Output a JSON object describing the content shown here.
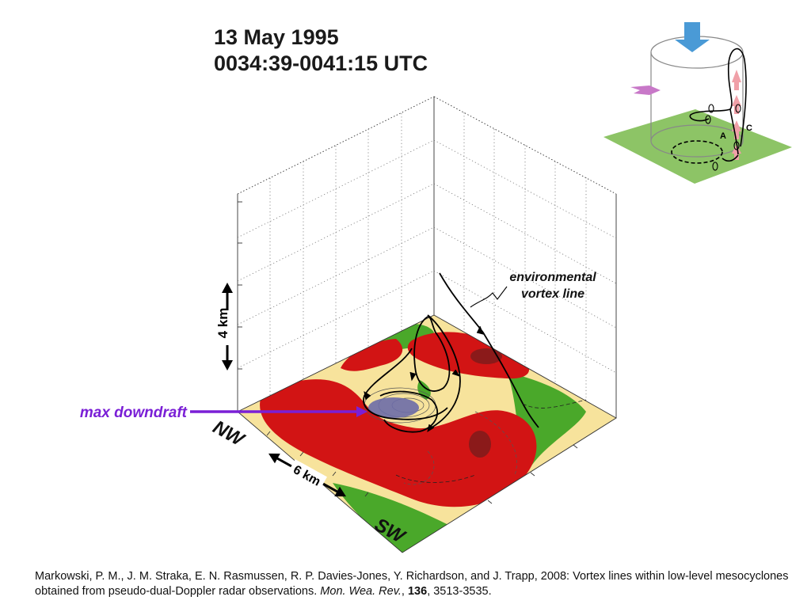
{
  "title": {
    "date": "13 May 1995",
    "time_range": "0034:39-0041:15 UTC"
  },
  "annotations": {
    "environmental_line1": "environmental",
    "environmental_line2": "vortex line",
    "max_downdraft": "max downdraft",
    "vertical_scale": "4 km",
    "horizontal_scale": "6 km",
    "nw": "NW",
    "sw": "SW"
  },
  "inset": {
    "label_a": "A",
    "label_c": "C"
  },
  "citation": {
    "text": "Markowski, P. M., J. M. Straka, E. N. Rasmussen, R. P. Davies-Jones, Y. Richardson, and J. Trapp, 2008: Vortex lines within low-level mesocyclones obtained from pseudo-dual-Doppler radar observations. ",
    "journal": "Mon. Wea. Rev.",
    "volume": "136",
    "pages": ", 3513-3535."
  },
  "colors": {
    "red": "#d21414",
    "dark_red": "#8b1a1a",
    "yellow": "#f7e39c",
    "green": "#4aa82a",
    "purple": "#7a1fd6",
    "downdraft_blue": "#6c6ca8",
    "inset_green": "#8dc466",
    "inset_blue_arrow": "#4a9ad6",
    "inset_pink_arrow": "#f0a0a8",
    "inset_purple_arrow": "#c878c8"
  }
}
